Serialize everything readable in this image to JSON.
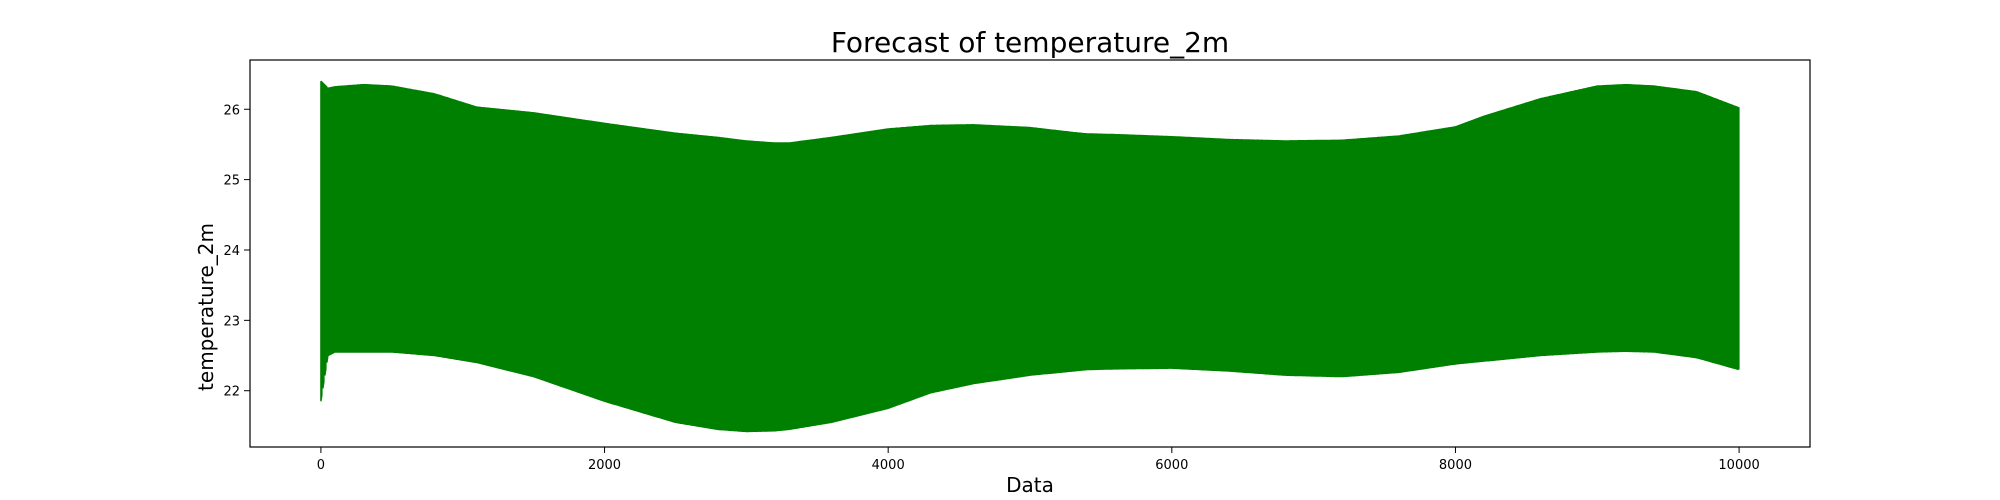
{
  "chart_data": {
    "type": "line",
    "title": "Forecast of temperature_2m",
    "xlabel": "Data",
    "ylabel": "temperature_2m",
    "xlim": [
      -500,
      10500
    ],
    "ylim": [
      21.2,
      26.7
    ],
    "x_ticks": [
      0,
      2000,
      4000,
      6000,
      8000,
      10000
    ],
    "y_ticks": [
      22,
      23,
      24,
      25,
      26
    ],
    "grid": false,
    "legend": "none",
    "series": [
      {
        "color": "#008000",
        "x_range": [
          0,
          10000
        ],
        "envelope": {
          "x": [
            0,
            50,
            100,
            300,
            500,
            800,
            1100,
            1500,
            2000,
            2500,
            2800,
            3000,
            3200,
            3300,
            3600,
            4000,
            4300,
            4600,
            5000,
            5300,
            5400,
            5600,
            6000,
            6400,
            6800,
            7200,
            7600,
            8000,
            8200,
            8600,
            9000,
            9200,
            9400,
            9700,
            10000
          ],
          "upper": [
            26.4,
            26.3,
            26.32,
            26.35,
            26.33,
            26.22,
            26.03,
            25.95,
            25.8,
            25.66,
            25.6,
            25.55,
            25.52,
            25.52,
            25.6,
            25.72,
            25.77,
            25.78,
            25.74,
            25.67,
            25.65,
            25.64,
            25.61,
            25.57,
            25.55,
            25.56,
            25.62,
            25.75,
            25.9,
            26.15,
            26.33,
            26.35,
            26.33,
            26.25,
            26.02
          ],
          "lower": [
            21.85,
            22.5,
            22.55,
            22.55,
            22.55,
            22.5,
            22.4,
            22.2,
            21.85,
            21.55,
            21.45,
            21.42,
            21.43,
            21.45,
            21.55,
            21.75,
            21.97,
            22.1,
            22.22,
            22.28,
            22.3,
            22.31,
            22.32,
            22.28,
            22.22,
            22.2,
            22.26,
            22.38,
            22.42,
            22.5,
            22.55,
            22.56,
            22.55,
            22.47,
            22.3
          ]
        }
      }
    ]
  }
}
